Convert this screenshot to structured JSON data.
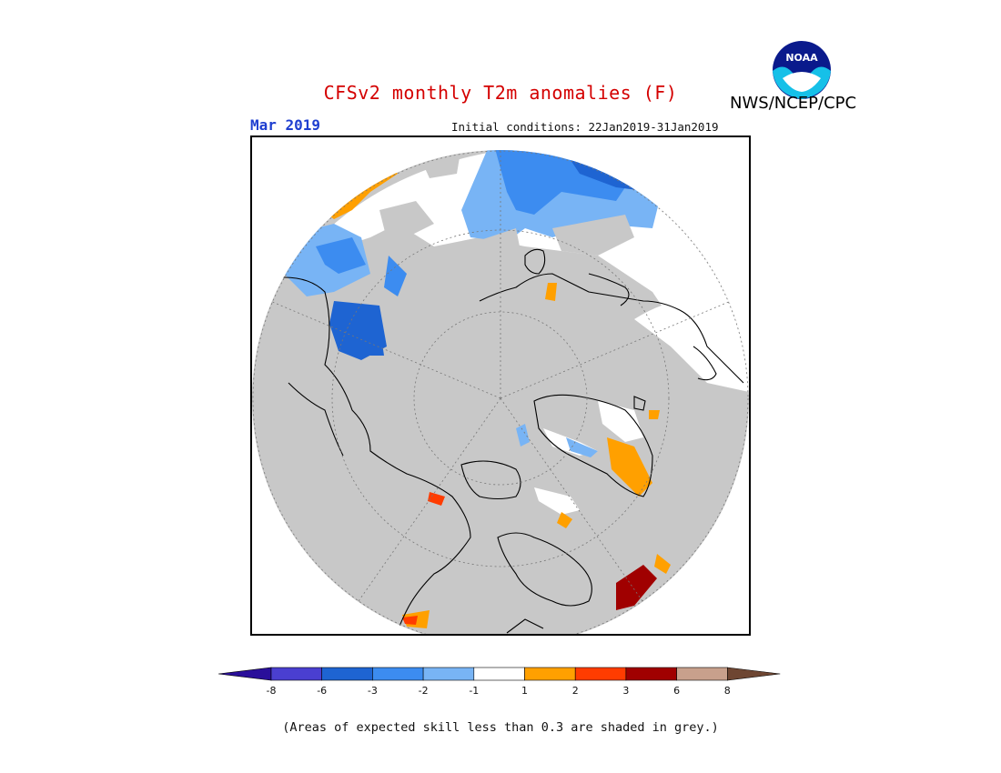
{
  "header": {
    "title": "CFSv2 monthly T2m anomalies (F)",
    "agency": "NWS/NCEP/CPC",
    "logo_text": "NOAA",
    "month": "Mar 2019",
    "initial_conditions": "Initial conditions: 22Jan2019-31Jan2019"
  },
  "map": {
    "projection": "north polar stereographic",
    "background_color": "#c8c8c8",
    "anomaly_regions": [
      {
        "region": "North Pacific / Sea of Okhotsk",
        "category": "-1 to 1 and -3 to -1",
        "color": "#ffffff"
      },
      {
        "region": "Northwest Pacific",
        "category": "-3 to -2",
        "color": "#5aa0f0"
      },
      {
        "region": "Aleutians / Bering",
        "category": "-6 to -3",
        "color": "#1e64d2"
      },
      {
        "region": "Eastern Siberia / Kamchatka coast",
        "category": "1 to 2",
        "color": "#ffa000"
      },
      {
        "region": "Mongolia / China",
        "category": "-6 to -3",
        "color": "#1e64d2"
      },
      {
        "region": "Western Europe / Atlantic",
        "category": "-1 to 1",
        "color": "#ffffff"
      },
      {
        "region": "Greenland southeast coast",
        "category": "1 to 2",
        "color": "#ffa000"
      },
      {
        "region": "Hudson Bay",
        "category": "1 to 2",
        "color": "#ffa000"
      },
      {
        "region": "Eastern Canada coast",
        "category": "3 to 6",
        "color": "#a00000"
      }
    ]
  },
  "colorbar": {
    "labels": [
      "-8",
      "-6",
      "-3",
      "-2",
      "-1",
      "1",
      "2",
      "3",
      "6",
      "8"
    ],
    "colors": [
      "#2a0f9a",
      "#4a3fd0",
      "#1e64d2",
      "#3c8cf0",
      "#78b4f5",
      "#ffffff",
      "#ffa000",
      "#ff3c00",
      "#a00000",
      "#c8a08c",
      "#6e4632"
    ],
    "low_arrow_color": "#2a0f9a",
    "high_arrow_color": "#6e4632"
  },
  "footnote": "(Areas of expected skill less than 0.3 are shaded in grey.)"
}
